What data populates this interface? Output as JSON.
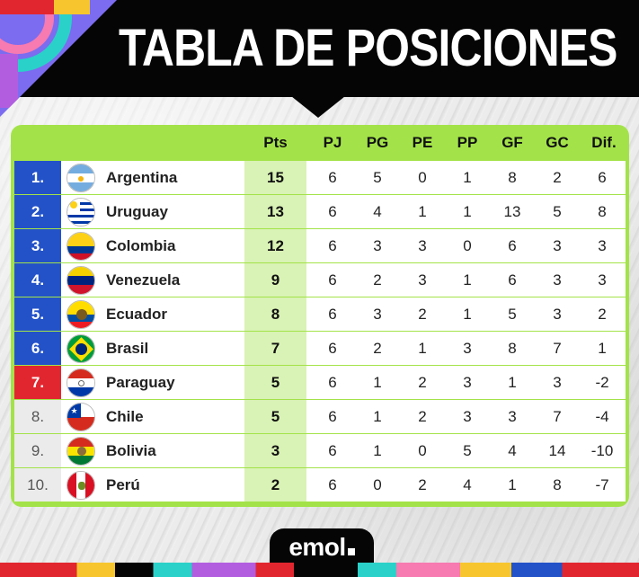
{
  "header": {
    "title": "TABLA DE POSICIONES"
  },
  "table": {
    "columns": {
      "pts": "Pts",
      "pj": "PJ",
      "pg": "PG",
      "pe": "PE",
      "pp": "PP",
      "gf": "GF",
      "gc": "GC",
      "dif": "Dif."
    },
    "rows": [
      {
        "rank": "1.",
        "team": "Argentina",
        "flag": "argentina-flag-icon",
        "pts": "15",
        "pj": "6",
        "pg": "5",
        "pe": "0",
        "pp": "1",
        "gf": "8",
        "gc": "2",
        "dif": "6",
        "zone": "blue"
      },
      {
        "rank": "2.",
        "team": "Uruguay",
        "flag": "uruguay-flag-icon",
        "pts": "13",
        "pj": "6",
        "pg": "4",
        "pe": "1",
        "pp": "1",
        "gf": "13",
        "gc": "5",
        "dif": "8",
        "zone": "blue"
      },
      {
        "rank": "3.",
        "team": "Colombia",
        "flag": "colombia-flag-icon",
        "pts": "12",
        "pj": "6",
        "pg": "3",
        "pe": "3",
        "pp": "0",
        "gf": "6",
        "gc": "3",
        "dif": "3",
        "zone": "blue"
      },
      {
        "rank": "4.",
        "team": "Venezuela",
        "flag": "venezuela-flag-icon",
        "pts": "9",
        "pj": "6",
        "pg": "2",
        "pe": "3",
        "pp": "1",
        "gf": "6",
        "gc": "3",
        "dif": "3",
        "zone": "blue"
      },
      {
        "rank": "5.",
        "team": "Ecuador",
        "flag": "ecuador-flag-icon",
        "pts": "8",
        "pj": "6",
        "pg": "3",
        "pe": "2",
        "pp": "1",
        "gf": "5",
        "gc": "3",
        "dif": "2",
        "zone": "blue"
      },
      {
        "rank": "6.",
        "team": "Brasil",
        "flag": "brasil-flag-icon",
        "pts": "7",
        "pj": "6",
        "pg": "2",
        "pe": "1",
        "pp": "3",
        "gf": "8",
        "gc": "7",
        "dif": "1",
        "zone": "blue"
      },
      {
        "rank": "7.",
        "team": "Paraguay",
        "flag": "paraguay-flag-icon",
        "pts": "5",
        "pj": "6",
        "pg": "1",
        "pe": "2",
        "pp": "3",
        "gf": "1",
        "gc": "3",
        "dif": "-2",
        "zone": "red"
      },
      {
        "rank": "8.",
        "team": "Chile",
        "flag": "chile-flag-icon",
        "pts": "5",
        "pj": "6",
        "pg": "1",
        "pe": "2",
        "pp": "3",
        "gf": "3",
        "gc": "7",
        "dif": "-4",
        "zone": "gray"
      },
      {
        "rank": "9.",
        "team": "Bolivia",
        "flag": "bolivia-flag-icon",
        "pts": "3",
        "pj": "6",
        "pg": "1",
        "pe": "0",
        "pp": "5",
        "gf": "4",
        "gc": "14",
        "dif": "-10",
        "zone": "gray"
      },
      {
        "rank": "10.",
        "team": "Perú",
        "flag": "peru-flag-icon",
        "pts": "2",
        "pj": "6",
        "pg": "0",
        "pe": "2",
        "pp": "4",
        "gf": "1",
        "gc": "8",
        "dif": "-7",
        "zone": "gray"
      }
    ]
  },
  "footer": {
    "logo": "emol"
  },
  "colors": {
    "accent_green": "#a3e349",
    "pts_green": "#d9f2b5",
    "zone_blue": "#2352c8",
    "zone_red": "#e2262f",
    "banner_black": "#050505"
  }
}
